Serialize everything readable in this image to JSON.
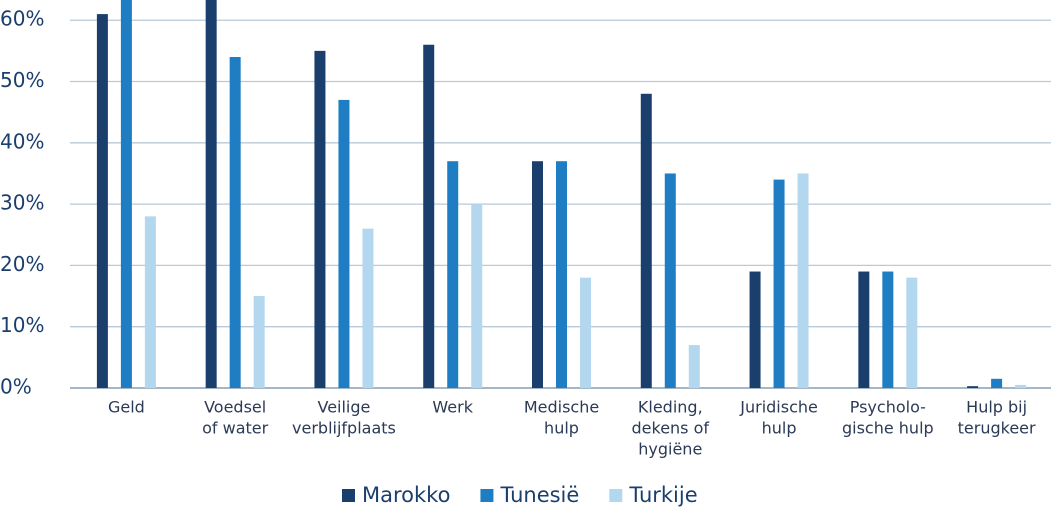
{
  "chart_data": {
    "type": "bar",
    "categories": [
      [
        "Geld"
      ],
      [
        "Voedsel",
        "of water"
      ],
      [
        "Veilige",
        "verblijfplaats"
      ],
      [
        "Werk"
      ],
      [
        "Medische",
        "hulp"
      ],
      [
        "Kleding,",
        "dekens of",
        "hygiëne"
      ],
      [
        "Juridische",
        "hulp"
      ],
      [
        "Psycholo-",
        "gische hulp"
      ],
      [
        "Hulp bij",
        "terugkeer"
      ]
    ],
    "series": [
      {
        "name": "Marokko",
        "color": "#1b3f6d",
        "values": [
          61,
          65,
          55,
          56,
          37,
          48,
          19,
          19,
          0.3
        ]
      },
      {
        "name": "Tunesië",
        "color": "#1f7dc3",
        "values": [
          65,
          54,
          47,
          37,
          37,
          35,
          34,
          19,
          1.5
        ]
      },
      {
        "name": "Turkije",
        "color": "#b3d7ee",
        "values": [
          28,
          15,
          26,
          30,
          18,
          7,
          35,
          18,
          0.5
        ]
      }
    ],
    "ylim": [
      0,
      63.3
    ],
    "yticks": [
      {
        "value": 0,
        "label": "0%"
      },
      {
        "value": 10,
        "label": "10%"
      },
      {
        "value": 20,
        "label": "20%"
      },
      {
        "value": 30,
        "label": "30%"
      },
      {
        "value": 40,
        "label": "40%"
      },
      {
        "value": 50,
        "label": "50%"
      },
      {
        "value": 60,
        "label": "60%"
      }
    ],
    "grid": true,
    "legend": "bottom"
  }
}
